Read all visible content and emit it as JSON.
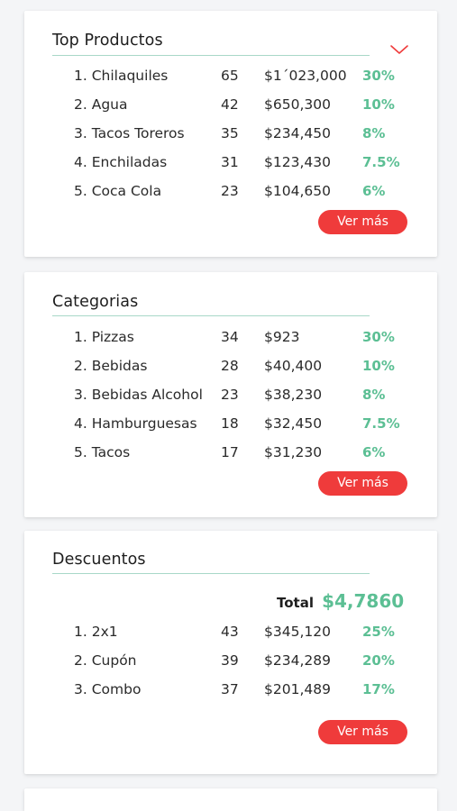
{
  "accent_color": "#ef3b3b",
  "positive_color": "#5cbf94",
  "top_products": {
    "title": "Top Productos",
    "collapse_icon": "chevron-down-icon",
    "rows": [
      {
        "name": "1. Chilaquiles",
        "qty": "65",
        "amount": "$1´023,000",
        "pct": "30%"
      },
      {
        "name": "2. Agua",
        "qty": "42",
        "amount": "$650,300",
        "pct": "10%"
      },
      {
        "name": "3. Tacos Toreros",
        "qty": "35",
        "amount": "$234,450",
        "pct": "8%"
      },
      {
        "name": "4. Enchiladas",
        "qty": "31",
        "amount": "$123,430",
        "pct": "7.5%"
      },
      {
        "name": "5. Coca Cola",
        "qty": "23",
        "amount": "$104,650",
        "pct": "6%"
      }
    ],
    "more_label": "Ver más"
  },
  "categories": {
    "title": "Categorias",
    "rows": [
      {
        "name": "1. Pizzas",
        "qty": "34",
        "amount": "$923",
        "pct": "30%"
      },
      {
        "name": "2. Bebidas",
        "qty": "28",
        "amount": "$40,400",
        "pct": "10%"
      },
      {
        "name": "3. Bebidas Alcohol",
        "qty": "23",
        "amount": "$38,230",
        "pct": "8%"
      },
      {
        "name": "4. Hamburguesas",
        "qty": "18",
        "amount": "$32,450",
        "pct": "7.5%"
      },
      {
        "name": "5. Tacos",
        "qty": "17",
        "amount": "$31,230",
        "pct": "6%"
      }
    ],
    "more_label": "Ver más"
  },
  "discounts": {
    "title": "Descuentos",
    "total_label": "Total",
    "total_value": "$4,7860",
    "rows": [
      {
        "name": "1. 2x1",
        "qty": "43",
        "amount": "$345,120",
        "pct": "25%"
      },
      {
        "name": "2. Cupón",
        "qty": "39",
        "amount": "$234,289",
        "pct": "20%"
      },
      {
        "name": "3. Combo",
        "qty": "37",
        "amount": "$201,489",
        "pct": "17%"
      }
    ],
    "more_label": "Ver más"
  }
}
